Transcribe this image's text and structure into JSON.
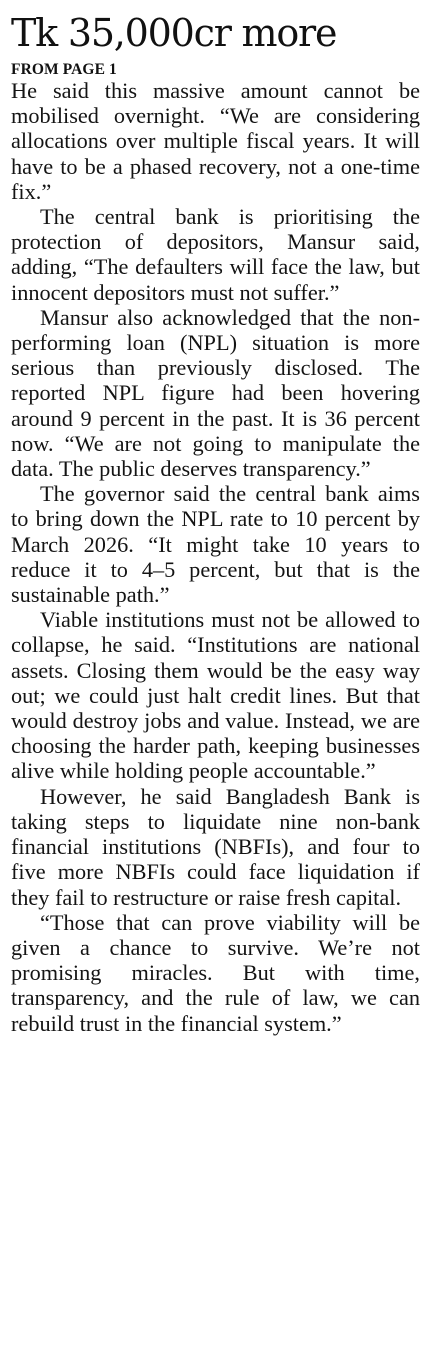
{
  "article": {
    "headline": "Tk 35,000cr more",
    "kicker": "FROM PAGE 1",
    "paragraphs": [
      "He said this massive amount cannot be mobilised overnight. “We are considering allocations over multiple fiscal years. It will have to be a phased recovery, not a one-time fix.”",
      "The central bank is prioritising the protection of depositors, Mansur said, adding, “The defaulters will face the law, but innocent depositors must not suffer.”",
      "Mansur also acknowledged that the non-performing loan (NPL) situation is more serious than previously disclosed. The reported NPL figure had been hovering around 9 percent in the past. It is 36 percent now. “We are not going to manipulate the data. The public deserves transparency.”",
      "The governor said the central bank aims to bring down the NPL rate to 10 percent by March 2026. “It might take 10 years to reduce it to 4–5 percent, but that is the sustainable path.”",
      "Viable institutions must not be allowed to collapse, he said. “Institutions are national assets. Closing them would be the easy way out; we could just halt credit lines. But that would destroy jobs and value. Instead, we are choosing the harder path, keeping businesses alive while holding people accountable.”",
      "However, he said Bangladesh Bank is taking steps to liquidate nine non-bank financial institutions (NBFIs), and four to five more NBFIs could face liquidation if they fail to restructure or raise fresh capital.",
      "“Those that can prove viability will be given a chance to survive. We’re not promising miracles. But with time, transparency, and the rule of law, we can rebuild trust in the financial system.”"
    ]
  }
}
